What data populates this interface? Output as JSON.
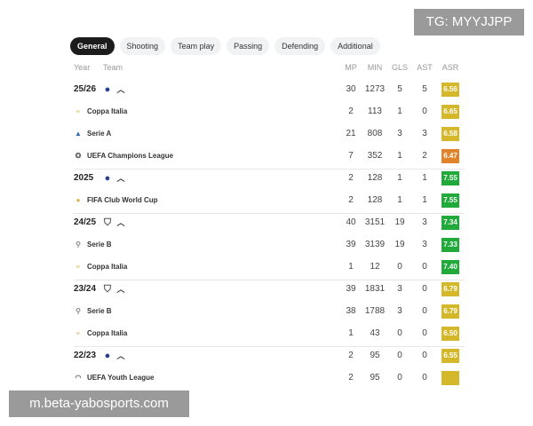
{
  "tabs": [
    "General",
    "Shooting",
    "Team play",
    "Passing",
    "Defending",
    "Additional"
  ],
  "header": {
    "year": "Year",
    "team": "Team",
    "cols": [
      "MP",
      "MIN",
      "GLS",
      "AST",
      "ASR"
    ]
  },
  "rows": [
    {
      "type": "year",
      "label": "25/26",
      "icon": "inter-crest-icon",
      "vals": [
        "30",
        "1273",
        "5",
        "5"
      ],
      "asr": "6.56",
      "color": "#d4b82a"
    },
    {
      "type": "comp",
      "label": "Coppa Italia",
      "icon": "coppa-italia-icon",
      "vals": [
        "2",
        "113",
        "1",
        "0"
      ],
      "asr": "6.65",
      "color": "#d4b82a"
    },
    {
      "type": "comp",
      "label": "Serie A",
      "icon": "serie-a-icon",
      "vals": [
        "21",
        "808",
        "3",
        "3"
      ],
      "asr": "6.58",
      "color": "#d4b82a"
    },
    {
      "type": "comp",
      "label": "UEFA Champions League",
      "icon": "champions-league-icon",
      "vals": [
        "7",
        "352",
        "1",
        "2"
      ],
      "asr": "6.47",
      "color": "#e0832a"
    },
    {
      "type": "year",
      "label": "2025",
      "icon": "inter-crest-icon",
      "vals": [
        "2",
        "128",
        "1",
        "1"
      ],
      "asr": "7.55",
      "color": "#1faa3a"
    },
    {
      "type": "comp",
      "label": "FIFA Club World Cup",
      "icon": "club-world-cup-icon",
      "vals": [
        "2",
        "128",
        "1",
        "1"
      ],
      "asr": "7.55",
      "color": "#1faa3a"
    },
    {
      "type": "year",
      "label": "24/25",
      "icon": "shield-crest-icon",
      "vals": [
        "40",
        "3151",
        "19",
        "3"
      ],
      "asr": "7.34",
      "color": "#1faa3a"
    },
    {
      "type": "comp",
      "label": "Serie B",
      "icon": "serie-b-icon",
      "vals": [
        "39",
        "3139",
        "19",
        "3"
      ],
      "asr": "7.33",
      "color": "#1faa3a"
    },
    {
      "type": "comp",
      "label": "Coppa Italia",
      "icon": "coppa-italia-icon",
      "vals": [
        "1",
        "12",
        "0",
        "0"
      ],
      "asr": "7.40",
      "color": "#1faa3a"
    },
    {
      "type": "year",
      "label": "23/24",
      "icon": "shield-crest-icon",
      "vals": [
        "39",
        "1831",
        "3",
        "0"
      ],
      "asr": "6.79",
      "color": "#d4b82a"
    },
    {
      "type": "comp",
      "label": "Serie B",
      "icon": "serie-b-icon",
      "vals": [
        "38",
        "1788",
        "3",
        "0"
      ],
      "asr": "6.79",
      "color": "#d4b82a"
    },
    {
      "type": "comp",
      "label": "Coppa Italia",
      "icon": "coppa-italia-icon",
      "vals": [
        "1",
        "43",
        "0",
        "0"
      ],
      "asr": "6.50",
      "color": "#d4b82a"
    },
    {
      "type": "year",
      "label": "22/23",
      "icon": "inter-crest-icon",
      "vals": [
        "2",
        "95",
        "0",
        "0"
      ],
      "asr": "6.55",
      "color": "#d4b82a"
    },
    {
      "type": "comp",
      "label": "UEFA Youth League",
      "icon": "youth-league-icon",
      "vals": [
        "2",
        "95",
        "0",
        "0"
      ],
      "asr": "",
      "color": "#d4b82a"
    }
  ],
  "watermarks": {
    "top": "TG: MYYJJPP",
    "bottom": "m.beta-yabosports.com"
  }
}
